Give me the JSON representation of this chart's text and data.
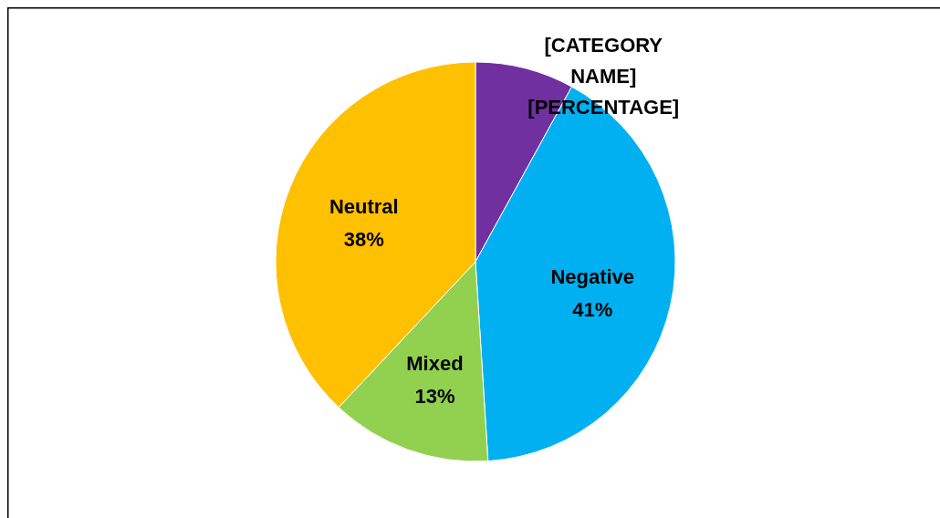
{
  "chart_data": {
    "type": "pie",
    "categories": [
      "[CATEGORY NAME]",
      "Negative",
      "Mixed",
      "Neutral"
    ],
    "values": [
      8,
      41,
      13,
      38
    ],
    "colors": [
      "#7030a0",
      "#00b0f0",
      "#92d050",
      "#ffc000"
    ],
    "value_labels": [
      "[PERCENTAGE]",
      "41%",
      "13%",
      "38%"
    ]
  }
}
